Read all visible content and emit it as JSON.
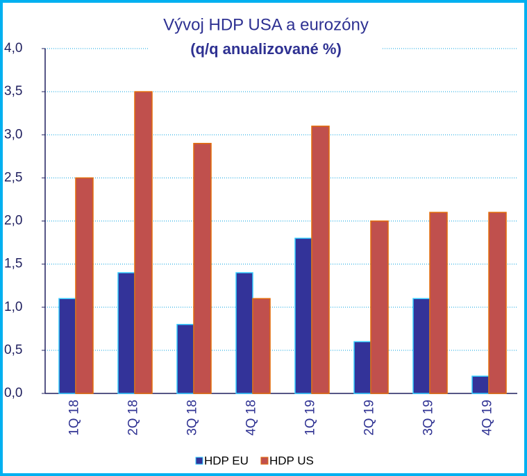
{
  "chart_data": {
    "type": "bar",
    "title": "Vývoj HDP USA a eurozóny",
    "subtitle": "(q/q anualizované %)",
    "categories": [
      "1Q 18",
      "2Q 18",
      "3Q 18",
      "4Q 18",
      "1Q 19",
      "2Q 19",
      "3Q 19",
      "4Q 19"
    ],
    "series": [
      {
        "name": "HDP EU",
        "color": "#333399",
        "values": [
          1.1,
          1.4,
          0.8,
          1.4,
          1.8,
          0.6,
          1.1,
          0.2
        ]
      },
      {
        "name": "HDP US",
        "color": "#c0504d",
        "values": [
          2.5,
          3.5,
          2.9,
          1.1,
          3.1,
          2.0,
          2.1,
          2.1
        ]
      }
    ],
    "ylim": [
      0,
      4
    ],
    "yticks": [
      {
        "value": 0,
        "label": "0,0"
      },
      {
        "value": 0.5,
        "label": "0,5"
      },
      {
        "value": 1,
        "label": "1,0"
      },
      {
        "value": 1.5,
        "label": "1,5"
      },
      {
        "value": 2,
        "label": "2,0"
      },
      {
        "value": 2.5,
        "label": "2,5"
      },
      {
        "value": 3,
        "label": "3,0"
      },
      {
        "value": 3.5,
        "label": "3,5"
      },
      {
        "value": 4,
        "label": "4,0"
      }
    ],
    "grid": true,
    "legend": "bottom"
  }
}
